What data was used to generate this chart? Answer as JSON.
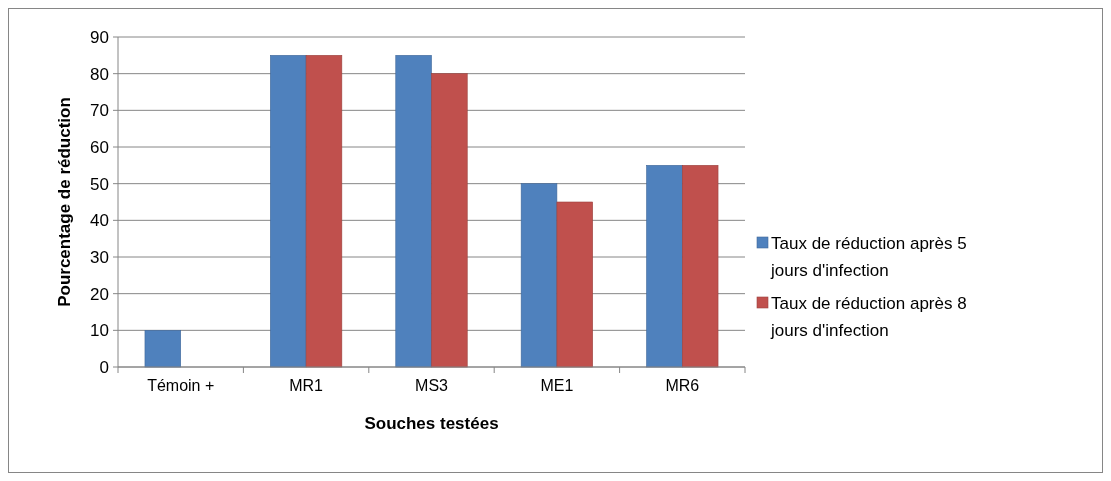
{
  "chart_data": {
    "type": "bar",
    "xlabel": "Souches testées",
    "ylabel": "Pourcentage de réduction",
    "categories": [
      "Témoin +",
      "MR1",
      "MS3",
      "ME1",
      "MR6"
    ],
    "series": [
      {
        "name": "Taux de réduction après 5 jours d'infection",
        "color": "#4f81bd",
        "values": [
          10,
          85,
          85,
          50,
          55
        ]
      },
      {
        "name": "Taux de réduction après 8 jours d'infection",
        "color": "#c0504d",
        "values": [
          null,
          85,
          80,
          45,
          55
        ]
      }
    ],
    "ylim": [
      0,
      90
    ],
    "yticks": [
      0,
      10,
      20,
      30,
      40,
      50,
      60,
      70,
      80,
      90
    ],
    "grid": "y",
    "legend": "right"
  }
}
